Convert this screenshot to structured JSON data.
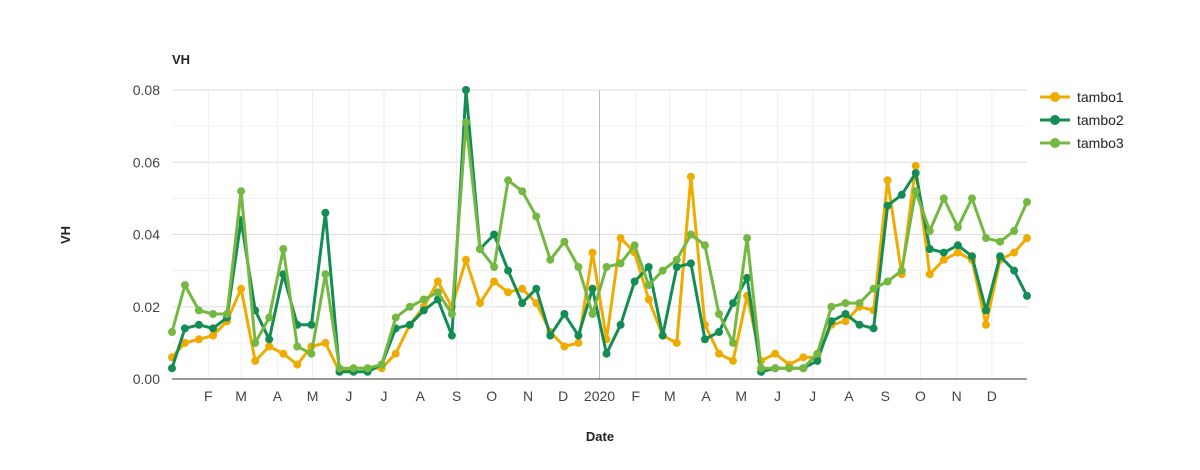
{
  "chart_data": {
    "type": "line",
    "title": "VH",
    "xlabel": "Date",
    "ylabel": "VH",
    "ylim": [
      0,
      0.08
    ],
    "yticks": [
      "0.00",
      "0.02",
      "0.04",
      "0.06",
      "0.08"
    ],
    "xlim": [
      "2019-01-01",
      "2020-12-31"
    ],
    "xticks": [
      {
        "date": "2019-02-01",
        "label": "F"
      },
      {
        "date": "2019-03-01",
        "label": "M"
      },
      {
        "date": "2019-04-01",
        "label": "A"
      },
      {
        "date": "2019-05-01",
        "label": "M"
      },
      {
        "date": "2019-06-01",
        "label": "J"
      },
      {
        "date": "2019-07-01",
        "label": "J"
      },
      {
        "date": "2019-08-01",
        "label": "A"
      },
      {
        "date": "2019-09-01",
        "label": "S"
      },
      {
        "date": "2019-10-01",
        "label": "O"
      },
      {
        "date": "2019-11-01",
        "label": "N"
      },
      {
        "date": "2019-12-01",
        "label": "D"
      },
      {
        "date": "2020-01-01",
        "label": "2020"
      },
      {
        "date": "2020-02-01",
        "label": "F"
      },
      {
        "date": "2020-03-01",
        "label": "M"
      },
      {
        "date": "2020-04-01",
        "label": "A"
      },
      {
        "date": "2020-05-01",
        "label": "M"
      },
      {
        "date": "2020-06-01",
        "label": "J"
      },
      {
        "date": "2020-07-01",
        "label": "J"
      },
      {
        "date": "2020-08-01",
        "label": "A"
      },
      {
        "date": "2020-09-01",
        "label": "S"
      },
      {
        "date": "2020-10-01",
        "label": "O"
      },
      {
        "date": "2020-11-01",
        "label": "N"
      },
      {
        "date": "2020-12-01",
        "label": "D"
      }
    ],
    "grid": true,
    "legend": "right",
    "series": [
      {
        "name": "tambo1",
        "color": "#f0ab00",
        "points": [
          [
            "2019-01-01",
            0.006
          ],
          [
            "2019-01-12",
            0.01
          ],
          [
            "2019-01-24",
            0.011
          ],
          [
            "2019-02-05",
            0.012
          ],
          [
            "2019-02-17",
            0.016
          ],
          [
            "2019-03-01",
            0.025
          ],
          [
            "2019-03-13",
            0.005
          ],
          [
            "2019-03-25",
            0.009
          ],
          [
            "2019-04-06",
            0.007
          ],
          [
            "2019-04-18",
            0.004
          ],
          [
            "2019-04-30",
            0.009
          ],
          [
            "2019-05-12",
            0.01
          ],
          [
            "2019-05-24",
            0.002
          ],
          [
            "2019-06-05",
            0.003
          ],
          [
            "2019-06-17",
            0.003
          ],
          [
            "2019-06-29",
            0.003
          ],
          [
            "2019-07-11",
            0.007
          ],
          [
            "2019-07-23",
            0.015
          ],
          [
            "2019-08-04",
            0.02
          ],
          [
            "2019-08-16",
            0.027
          ],
          [
            "2019-08-28",
            0.02
          ],
          [
            "2019-09-09",
            0.033
          ],
          [
            "2019-09-21",
            0.021
          ],
          [
            "2019-10-03",
            0.027
          ],
          [
            "2019-10-15",
            0.024
          ],
          [
            "2019-10-27",
            0.025
          ],
          [
            "2019-11-08",
            0.021
          ],
          [
            "2019-11-20",
            0.013
          ],
          [
            "2019-12-02",
            0.009
          ],
          [
            "2019-12-14",
            0.01
          ],
          [
            "2019-12-26",
            0.035
          ],
          [
            "2020-01-07",
            0.011
          ],
          [
            "2020-01-19",
            0.039
          ],
          [
            "2020-01-31",
            0.035
          ],
          [
            "2020-02-12",
            0.022
          ],
          [
            "2020-02-24",
            0.012
          ],
          [
            "2020-03-07",
            0.01
          ],
          [
            "2020-03-19",
            0.056
          ],
          [
            "2020-03-31",
            0.015
          ],
          [
            "2020-04-12",
            0.007
          ],
          [
            "2020-04-24",
            0.005
          ],
          [
            "2020-05-06",
            0.023
          ],
          [
            "2020-05-18",
            0.005
          ],
          [
            "2020-05-30",
            0.007
          ],
          [
            "2020-06-11",
            0.004
          ],
          [
            "2020-06-23",
            0.006
          ],
          [
            "2020-07-05",
            0.006
          ],
          [
            "2020-07-17",
            0.015
          ],
          [
            "2020-07-29",
            0.016
          ],
          [
            "2020-08-10",
            0.02
          ],
          [
            "2020-08-22",
            0.019
          ],
          [
            "2020-09-03",
            0.055
          ],
          [
            "2020-09-15",
            0.029
          ],
          [
            "2020-09-27",
            0.059
          ],
          [
            "2020-10-09",
            0.029
          ],
          [
            "2020-10-21",
            0.033
          ],
          [
            "2020-11-02",
            0.035
          ],
          [
            "2020-11-14",
            0.033
          ],
          [
            "2020-11-26",
            0.015
          ],
          [
            "2020-12-08",
            0.033
          ],
          [
            "2020-12-20",
            0.035
          ],
          [
            "2020-12-31",
            0.039
          ]
        ]
      },
      {
        "name": "tambo2",
        "color": "#138d55",
        "points": [
          [
            "2019-01-01",
            0.003
          ],
          [
            "2019-01-12",
            0.014
          ],
          [
            "2019-01-24",
            0.015
          ],
          [
            "2019-02-05",
            0.014
          ],
          [
            "2019-02-17",
            0.017
          ],
          [
            "2019-03-01",
            0.044
          ],
          [
            "2019-03-13",
            0.019
          ],
          [
            "2019-03-25",
            0.011
          ],
          [
            "2019-04-06",
            0.029
          ],
          [
            "2019-04-18",
            0.015
          ],
          [
            "2019-04-30",
            0.015
          ],
          [
            "2019-05-12",
            0.046
          ],
          [
            "2019-05-24",
            0.002
          ],
          [
            "2019-06-05",
            0.002
          ],
          [
            "2019-06-17",
            0.002
          ],
          [
            "2019-06-29",
            0.004
          ],
          [
            "2019-07-11",
            0.014
          ],
          [
            "2019-07-23",
            0.015
          ],
          [
            "2019-08-04",
            0.019
          ],
          [
            "2019-08-16",
            0.022
          ],
          [
            "2019-08-28",
            0.012
          ],
          [
            "2019-09-09",
            0.08
          ],
          [
            "2019-09-21",
            0.036
          ],
          [
            "2019-10-03",
            0.04
          ],
          [
            "2019-10-15",
            0.03
          ],
          [
            "2019-10-27",
            0.021
          ],
          [
            "2019-11-08",
            0.025
          ],
          [
            "2019-11-20",
            0.012
          ],
          [
            "2019-12-02",
            0.018
          ],
          [
            "2019-12-14",
            0.012
          ],
          [
            "2019-12-26",
            0.025
          ],
          [
            "2020-01-07",
            0.007
          ],
          [
            "2020-01-19",
            0.015
          ],
          [
            "2020-01-31",
            0.027
          ],
          [
            "2020-02-12",
            0.031
          ],
          [
            "2020-02-24",
            0.012
          ],
          [
            "2020-03-07",
            0.031
          ],
          [
            "2020-03-19",
            0.032
          ],
          [
            "2020-03-31",
            0.011
          ],
          [
            "2020-04-12",
            0.013
          ],
          [
            "2020-04-24",
            0.021
          ],
          [
            "2020-05-06",
            0.028
          ],
          [
            "2020-05-18",
            0.002
          ],
          [
            "2020-05-30",
            0.003
          ],
          [
            "2020-06-11",
            0.003
          ],
          [
            "2020-06-23",
            0.003
          ],
          [
            "2020-07-05",
            0.005
          ],
          [
            "2020-07-17",
            0.016
          ],
          [
            "2020-07-29",
            0.018
          ],
          [
            "2020-08-10",
            0.015
          ],
          [
            "2020-08-22",
            0.014
          ],
          [
            "2020-09-03",
            0.048
          ],
          [
            "2020-09-15",
            0.051
          ],
          [
            "2020-09-27",
            0.057
          ],
          [
            "2020-10-09",
            0.036
          ],
          [
            "2020-10-21",
            0.035
          ],
          [
            "2020-11-02",
            0.037
          ],
          [
            "2020-11-14",
            0.034
          ],
          [
            "2020-11-26",
            0.019
          ],
          [
            "2020-12-08",
            0.034
          ],
          [
            "2020-12-20",
            0.03
          ],
          [
            "2020-12-31",
            0.023
          ]
        ]
      },
      {
        "name": "tambo3",
        "color": "#74b841",
        "points": [
          [
            "2019-01-01",
            0.013
          ],
          [
            "2019-01-12",
            0.026
          ],
          [
            "2019-01-24",
            0.019
          ],
          [
            "2019-02-05",
            0.018
          ],
          [
            "2019-02-17",
            0.018
          ],
          [
            "2019-03-01",
            0.052
          ],
          [
            "2019-03-13",
            0.01
          ],
          [
            "2019-03-25",
            0.017
          ],
          [
            "2019-04-06",
            0.036
          ],
          [
            "2019-04-18",
            0.009
          ],
          [
            "2019-04-30",
            0.007
          ],
          [
            "2019-05-12",
            0.029
          ],
          [
            "2019-05-24",
            0.003
          ],
          [
            "2019-06-05",
            0.003
          ],
          [
            "2019-06-17",
            0.003
          ],
          [
            "2019-06-29",
            0.004
          ],
          [
            "2019-07-11",
            0.017
          ],
          [
            "2019-07-23",
            0.02
          ],
          [
            "2019-08-04",
            0.022
          ],
          [
            "2019-08-16",
            0.024
          ],
          [
            "2019-08-28",
            0.018
          ],
          [
            "2019-09-09",
            0.071
          ],
          [
            "2019-09-21",
            0.036
          ],
          [
            "2019-10-03",
            0.031
          ],
          [
            "2019-10-15",
            0.055
          ],
          [
            "2019-10-27",
            0.052
          ],
          [
            "2019-11-08",
            0.045
          ],
          [
            "2019-11-20",
            0.033
          ],
          [
            "2019-12-02",
            0.038
          ],
          [
            "2019-12-14",
            0.031
          ],
          [
            "2019-12-26",
            0.018
          ],
          [
            "2020-01-07",
            0.031
          ],
          [
            "2020-01-19",
            0.032
          ],
          [
            "2020-01-31",
            0.037
          ],
          [
            "2020-02-12",
            0.026
          ],
          [
            "2020-02-24",
            0.03
          ],
          [
            "2020-03-07",
            0.033
          ],
          [
            "2020-03-19",
            0.04
          ],
          [
            "2020-03-31",
            0.037
          ],
          [
            "2020-04-12",
            0.018
          ],
          [
            "2020-04-24",
            0.01
          ],
          [
            "2020-05-06",
            0.039
          ],
          [
            "2020-05-18",
            0.003
          ],
          [
            "2020-05-30",
            0.003
          ],
          [
            "2020-06-11",
            0.003
          ],
          [
            "2020-06-23",
            0.003
          ],
          [
            "2020-07-05",
            0.007
          ],
          [
            "2020-07-17",
            0.02
          ],
          [
            "2020-07-29",
            0.021
          ],
          [
            "2020-08-10",
            0.021
          ],
          [
            "2020-08-22",
            0.025
          ],
          [
            "2020-09-03",
            0.027
          ],
          [
            "2020-09-15",
            0.03
          ],
          [
            "2020-09-27",
            0.052
          ],
          [
            "2020-10-09",
            0.041
          ],
          [
            "2020-10-21",
            0.05
          ],
          [
            "2020-11-02",
            0.042
          ],
          [
            "2020-11-14",
            0.05
          ],
          [
            "2020-11-26",
            0.039
          ],
          [
            "2020-12-08",
            0.038
          ],
          [
            "2020-12-20",
            0.041
          ],
          [
            "2020-12-31",
            0.049
          ]
        ]
      }
    ]
  }
}
